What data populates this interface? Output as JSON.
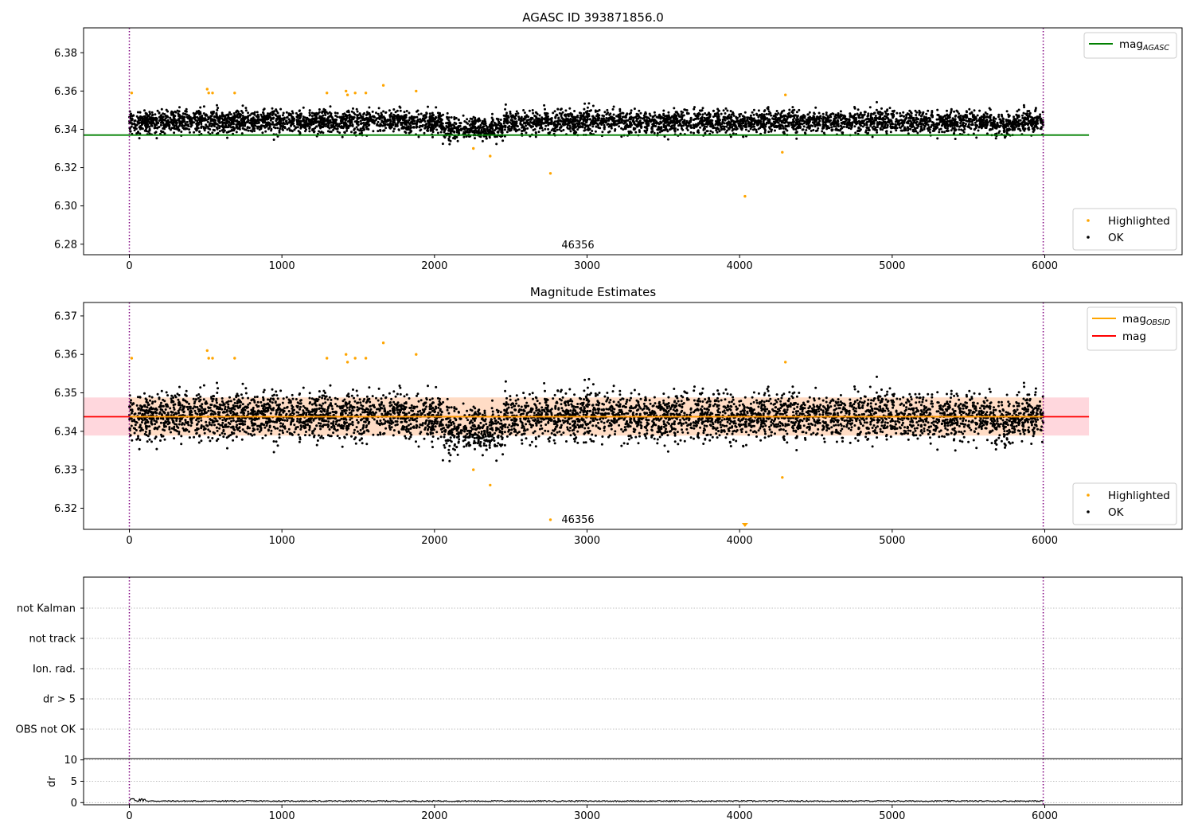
{
  "chart_data": [
    {
      "type": "scatter",
      "title": "AGASC ID 393871856.0",
      "xlim": [
        -300,
        6900
      ],
      "ylim": [
        6.2745,
        6.393
      ],
      "xticks": [
        "0",
        "1000",
        "2000",
        "3000",
        "4000",
        "5000",
        "6000"
      ],
      "xtick_values": [
        0,
        1000,
        2000,
        3000,
        4000,
        5000,
        6000
      ],
      "yticks": [
        "6.28",
        "6.30",
        "6.32",
        "6.34",
        "6.36",
        "6.38"
      ],
      "ytick_values": [
        6.28,
        6.3,
        6.32,
        6.34,
        6.36,
        6.38
      ],
      "obsid_boundaries": [
        0,
        5990
      ],
      "obsid_label": "46356",
      "lines": [
        {
          "name": "mag_AGASC",
          "y": 6.337,
          "x_range": [
            -300,
            6290
          ],
          "color": "#008000"
        }
      ],
      "series": [
        {
          "name": "Highlighted",
          "color": "#ffa500",
          "points": [
            [
              15,
              6.359
            ],
            [
              510,
              6.361
            ],
            [
              520,
              6.359
            ],
            [
              545,
              6.359
            ],
            [
              690,
              6.359
            ],
            [
              1295,
              6.359
            ],
            [
              1420,
              6.36
            ],
            [
              1430,
              6.358
            ],
            [
              1480,
              6.359
            ],
            [
              1550,
              6.359
            ],
            [
              1665,
              6.363
            ],
            [
              1880,
              6.36
            ],
            [
              2255,
              6.33
            ],
            [
              2365,
              6.326
            ],
            [
              2760,
              6.317
            ],
            [
              4035,
              6.305
            ],
            [
              4280,
              6.328
            ],
            [
              4300,
              6.358
            ]
          ]
        },
        {
          "name": "OK",
          "color": "#000000",
          "points": "band ~6000 points, x 0-5990, y centred 6.344, spread 6.331-6.358"
        }
      ],
      "legend": [
        {
          "label": "mag",
          "sub": "AGASC",
          "kind": "line",
          "color": "#008000"
        },
        {
          "label": "Highlighted",
          "kind": "marker",
          "color": "#ffa500"
        },
        {
          "label": "OK",
          "kind": "marker",
          "color": "#000000"
        }
      ]
    },
    {
      "type": "scatter",
      "title": "Magnitude Estimates",
      "xlim": [
        -300,
        6900
      ],
      "ylim": [
        6.3145,
        6.3735
      ],
      "xticks": [
        "0",
        "1000",
        "2000",
        "3000",
        "4000",
        "5000",
        "6000"
      ],
      "xtick_values": [
        0,
        1000,
        2000,
        3000,
        4000,
        5000,
        6000
      ],
      "yticks": [
        "6.32",
        "6.33",
        "6.34",
        "6.35",
        "6.36",
        "6.37"
      ],
      "ytick_values": [
        6.32,
        6.33,
        6.34,
        6.35,
        6.36,
        6.37
      ],
      "obsid_boundaries": [
        0,
        5990
      ],
      "obsid_label": "46356",
      "lines": [
        {
          "name": "mag",
          "y": 6.3438,
          "x_range": [
            -300,
            6290
          ],
          "color": "#ff0000"
        },
        {
          "name": "mag_OBSID",
          "y": 6.3438,
          "x_range": [
            0,
            5990
          ],
          "color": "#ffa500"
        }
      ],
      "bands": [
        {
          "name": "mag band",
          "y": [
            6.3389,
            6.3488
          ],
          "x_range": [
            -300,
            6290
          ],
          "color": "#ffb6c1"
        },
        {
          "name": "mag_OBSID band",
          "y": [
            6.3389,
            6.3488
          ],
          "x_range": [
            0,
            5990
          ],
          "color": "#ffe0b0"
        }
      ],
      "series": [
        {
          "name": "Highlighted",
          "color": "#ffa500",
          "points": [
            [
              15,
              6.359
            ],
            [
              510,
              6.361
            ],
            [
              520,
              6.359
            ],
            [
              545,
              6.359
            ],
            [
              690,
              6.359
            ],
            [
              1295,
              6.359
            ],
            [
              1420,
              6.36
            ],
            [
              1430,
              6.358
            ],
            [
              1480,
              6.359
            ],
            [
              1550,
              6.359
            ],
            [
              1665,
              6.363
            ],
            [
              1880,
              6.36
            ],
            [
              2255,
              6.33
            ],
            [
              2365,
              6.326
            ],
            [
              2760,
              6.317
            ],
            [
              4280,
              6.328
            ],
            [
              4300,
              6.358
            ]
          ]
        },
        {
          "name": "OK",
          "color": "#000000",
          "points": "band ~6000 points, x 0-5990, y centred 6.344, spread 6.331-6.358"
        }
      ],
      "offscale_markers": [
        {
          "x": 4035,
          "color": "#ffa500"
        }
      ],
      "legend": [
        {
          "label": "mag",
          "sub": "OBSID",
          "kind": "line",
          "color": "#ffa500"
        },
        {
          "label": "mag",
          "sub": "",
          "kind": "line",
          "color": "#ff0000"
        },
        {
          "label": "Highlighted",
          "kind": "marker",
          "color": "#ffa500"
        },
        {
          "label": "OK",
          "kind": "marker",
          "color": "#000000"
        }
      ]
    },
    {
      "type": "scatter",
      "title": "",
      "xlim": [
        -300,
        6900
      ],
      "categories": [
        "not Kalman",
        "not track",
        "Ion. rad.",
        "dr > 5",
        "OBS not OK"
      ],
      "obsid_boundaries": [
        0,
        5990
      ],
      "series": []
    },
    {
      "type": "line",
      "title": "",
      "ylabel": "dr",
      "xlim": [
        -300,
        6900
      ],
      "ylim": [
        -0.5,
        10.3
      ],
      "xticks": [
        "0",
        "1000",
        "2000",
        "3000",
        "4000",
        "5000",
        "6000"
      ],
      "xtick_values": [
        0,
        1000,
        2000,
        3000,
        4000,
        5000,
        6000
      ],
      "yticks": [
        "0",
        "5",
        "10"
      ],
      "ytick_values": [
        0,
        5,
        10
      ],
      "obsid_boundaries": [
        0,
        5990
      ],
      "series": [
        {
          "name": "dr",
          "color": "#000000",
          "points": "x 0-5990, y ~0.1-0.5"
        }
      ]
    }
  ]
}
